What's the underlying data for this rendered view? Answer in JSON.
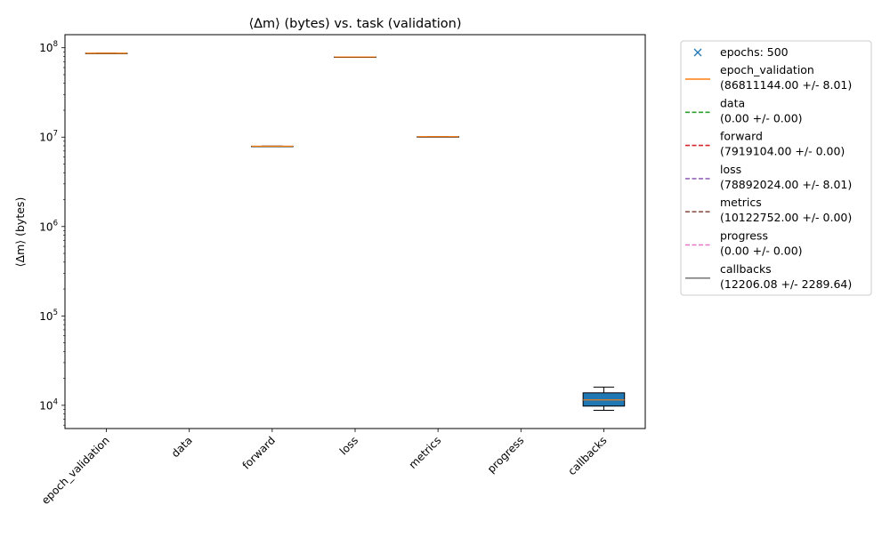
{
  "chart_data": {
    "type": "box",
    "title": "⟨Δm⟩ (bytes) vs. task (validation)",
    "xlabel": "",
    "ylabel": "⟨Δm⟩ (bytes)",
    "yscale": "log",
    "ylim": [
      5500,
      140000000
    ],
    "y_ticks": [
      10000,
      100000,
      1000000,
      10000000,
      100000000
    ],
    "y_tick_labels": [
      {
        "base": "10",
        "exp": "4"
      },
      {
        "base": "10",
        "exp": "5"
      },
      {
        "base": "10",
        "exp": "6"
      },
      {
        "base": "10",
        "exp": "7"
      },
      {
        "base": "10",
        "exp": "8"
      }
    ],
    "categories": [
      "epoch_validation",
      "data",
      "forward",
      "loss",
      "metrics",
      "progress",
      "callbacks"
    ],
    "boxes": [
      {
        "category": "epoch_validation",
        "whislo": 86811130,
        "q1": 86811140,
        "med": 86811144,
        "q3": 86811150,
        "whishi": 86811160
      },
      {
        "category": "data",
        "whislo": 0,
        "q1": 0,
        "med": 0,
        "q3": 0,
        "whishi": 0
      },
      {
        "category": "forward",
        "whislo": 7919104,
        "q1": 7919104,
        "med": 7919104,
        "q3": 7919104,
        "whishi": 7919104
      },
      {
        "category": "loss",
        "whislo": 78892010,
        "q1": 78892020,
        "med": 78892024,
        "q3": 78892030,
        "whishi": 78892040
      },
      {
        "category": "metrics",
        "whislo": 10122752,
        "q1": 10122752,
        "med": 10122752,
        "q3": 10122752,
        "whishi": 10122752
      },
      {
        "category": "progress",
        "whislo": 0,
        "q1": 0,
        "med": 0,
        "q3": 0,
        "whishi": 0
      },
      {
        "category": "callbacks",
        "whislo": 8800,
        "q1": 9800,
        "med": 11500,
        "q3": 13800,
        "whishi": 16000
      }
    ],
    "legend": {
      "placement": "outside-right",
      "entries": [
        {
          "style": "marker-x",
          "color": "#1f77b4",
          "line1": "epochs: 500",
          "line2": ""
        },
        {
          "style": "solid",
          "color": "#ff7f0e",
          "line1": "epoch_validation",
          "line2": "(86811144.00 +/- 8.01)"
        },
        {
          "style": "dashed",
          "color": "#2ca02c",
          "line1": "data",
          "line2": "(0.00 +/- 0.00)"
        },
        {
          "style": "dashed",
          "color": "#d62728",
          "line1": "forward",
          "line2": "(7919104.00 +/- 0.00)"
        },
        {
          "style": "dashed",
          "color": "#9467bd",
          "line1": "loss",
          "line2": "(78892024.00 +/- 8.01)"
        },
        {
          "style": "dashed",
          "color": "#8c564b",
          "line1": "metrics",
          "line2": "(10122752.00 +/- 0.00)"
        },
        {
          "style": "dashed",
          "color": "#e377c2",
          "line1": "progress",
          "line2": "(0.00 +/- 0.00)"
        },
        {
          "style": "solid",
          "color": "#7f7f7f",
          "line1": "callbacks",
          "line2": "(12206.08 +/- 2289.64)"
        }
      ]
    },
    "colors": {
      "box_fill": "#1f77b4",
      "median": "#ff7f0e"
    }
  }
}
